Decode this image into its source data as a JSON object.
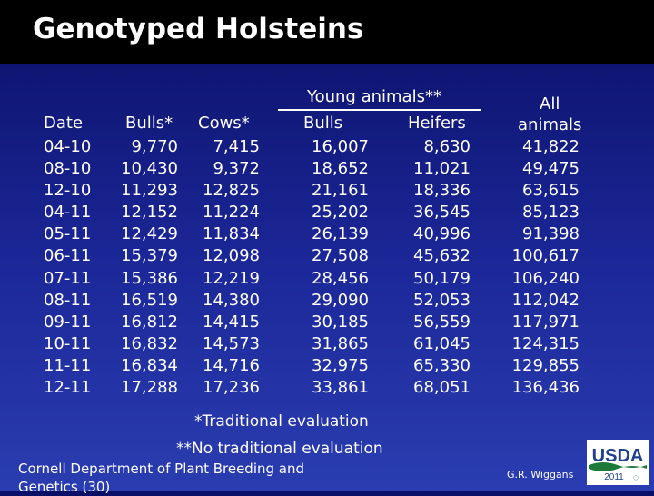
{
  "title": "Genotyped Holsteins",
  "headers": {
    "young_animals": "Young animals**",
    "date": "Date",
    "bulls_star": "Bulls*",
    "cows_star": "Cows*",
    "bulls": "Bulls",
    "heifers": "Heifers",
    "all_line1": "All",
    "all_line2": "animals"
  },
  "rows": [
    {
      "date": "04-10",
      "bulls": "9,770",
      "cows": "7,415",
      "young_bulls": "16,007",
      "heifers": "8,630",
      "all": "41,822"
    },
    {
      "date": "08-10",
      "bulls": "10,430",
      "cows": "9,372",
      "young_bulls": "18,652",
      "heifers": "11,021",
      "all": "49,475"
    },
    {
      "date": "12-10",
      "bulls": "11,293",
      "cows": "12,825",
      "young_bulls": "21,161",
      "heifers": "18,336",
      "all": "63,615"
    },
    {
      "date": "04-11",
      "bulls": "12,152",
      "cows": "11,224",
      "young_bulls": "25,202",
      "heifers": "36,545",
      "all": "85,123"
    },
    {
      "date": "05-11",
      "bulls": "12,429",
      "cows": "11,834",
      "young_bulls": "26,139",
      "heifers": "40,996",
      "all": "91,398"
    },
    {
      "date": "06-11",
      "bulls": "15,379",
      "cows": "12,098",
      "young_bulls": "27,508",
      "heifers": "45,632",
      "all": "100,617"
    },
    {
      "date": "07-11",
      "bulls": "15,386",
      "cows": "12,219",
      "young_bulls": "28,456",
      "heifers": "50,179",
      "all": "106,240"
    },
    {
      "date": "08-11",
      "bulls": "16,519",
      "cows": "14,380",
      "young_bulls": "29,090",
      "heifers": "52,053",
      "all": "112,042"
    },
    {
      "date": "09-11",
      "bulls": "16,812",
      "cows": "14,415",
      "young_bulls": "30,185",
      "heifers": "56,559",
      "all": "117,971"
    },
    {
      "date": "10-11",
      "bulls": "16,832",
      "cows": "14,573",
      "young_bulls": "31,865",
      "heifers": "61,045",
      "all": "124,315"
    },
    {
      "date": "11-11",
      "bulls": "16,834",
      "cows": "14,716",
      "young_bulls": "32,975",
      "heifers": "65,330",
      "all": "129,855"
    },
    {
      "date": "12-11",
      "bulls": "17,288",
      "cows": "17,236",
      "young_bulls": "33,861",
      "heifers": "68,051",
      "all": "136,436"
    }
  ],
  "footnotes": {
    "traditional": "*Traditional evaluation",
    "no_traditional": "**No traditional evaluation"
  },
  "source": "Cornell Department of Plant Breeding and Genetics (30)",
  "author": "G.R. Wiggans",
  "logo": {
    "text": "USDA",
    "year": "2011",
    "colors": {
      "blue": "#1f3f8f",
      "green": "#1d7a3a",
      "white": "#ffffff"
    }
  }
}
